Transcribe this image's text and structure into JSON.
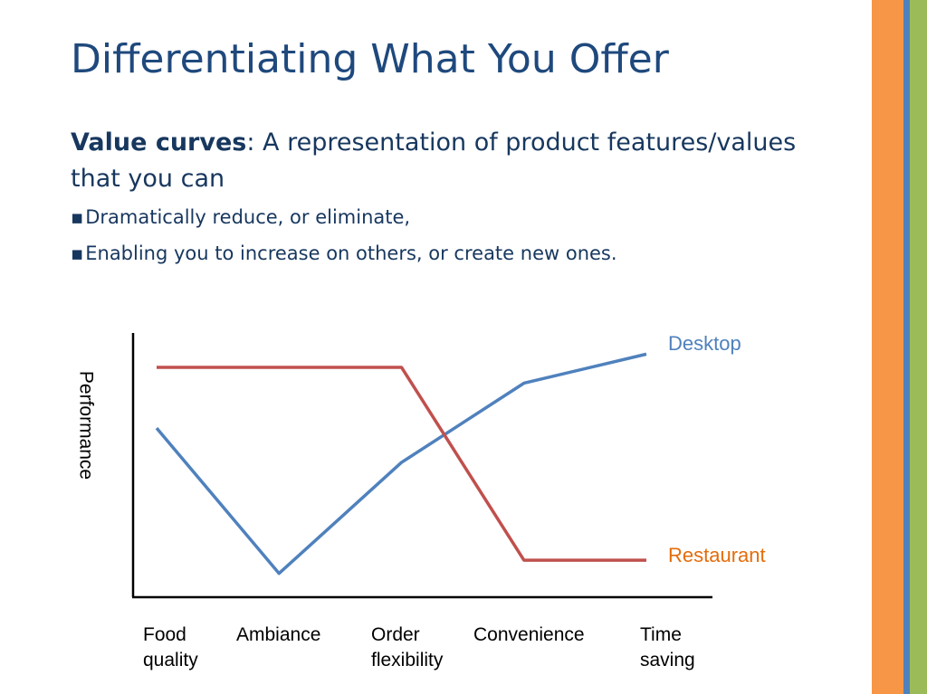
{
  "slide": {
    "title": "Differentiating What You Offer",
    "intro_term": "Value curves",
    "intro_text": ": A representation of product features/values that you can",
    "bullets": [
      "Dramatically reduce, or eliminate,",
      "Enabling you to increase on others, or create new ones."
    ]
  },
  "chart_data": {
    "type": "line",
    "y_label": "Performance",
    "categories": [
      "Food quality",
      "Ambiance",
      "Order flexibility",
      "Convenience",
      "Time saving"
    ],
    "ylim": [
      0,
      10
    ],
    "series": [
      {
        "name": "Desktop",
        "color": "#4f81bd",
        "label_color": "#4f81bd",
        "values": [
          6.4,
          0.9,
          5.1,
          8.1,
          9.2
        ]
      },
      {
        "name": "Restaurant",
        "color": "#c0504d",
        "label_color": "#e46c0a",
        "values": [
          8.7,
          8.7,
          8.7,
          1.4,
          1.4
        ]
      }
    ]
  }
}
